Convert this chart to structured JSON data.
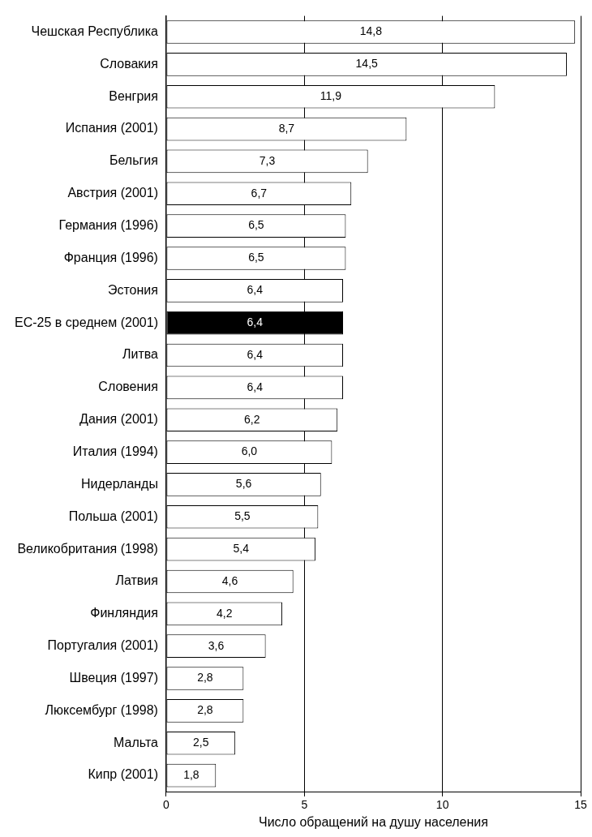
{
  "chart_data": {
    "type": "bar",
    "orientation": "horizontal",
    "categories": [
      "Чешская Республика",
      "Словакия",
      "Венгрия",
      "Испания (2001)",
      "Бельгия",
      "Австрия (2001)",
      "Германия (1996)",
      "Франция (1996)",
      "Эстония",
      "ЕС-25 в среднем (2001)",
      "Литва",
      "Словения",
      "Дания (2001)",
      "Италия (1994)",
      "Нидерланды",
      "Польша (2001)",
      "Великобритания (1998)",
      "Латвия",
      "Финляндия",
      "Португалия (2001)",
      "Швеция (1997)",
      "Люксембург (1998)",
      "Мальта",
      "Кипр (2001)"
    ],
    "values": [
      14.8,
      14.5,
      11.9,
      8.7,
      7.3,
      6.7,
      6.5,
      6.5,
      6.4,
      6.4,
      6.4,
      6.4,
      6.2,
      6.0,
      5.6,
      5.5,
      5.4,
      4.6,
      4.2,
      3.6,
      2.8,
      2.8,
      2.5,
      1.8
    ],
    "value_labels": [
      "14,8",
      "14,5",
      "11,9",
      "8,7",
      "7,3",
      "6,7",
      "6,5",
      "6,5",
      "6,4",
      "6,4",
      "6,4",
      "6,4",
      "6,2",
      "6,0",
      "5,6",
      "5,5",
      "5,4",
      "4,6",
      "4,2",
      "3,6",
      "2,8",
      "2,8",
      "2,5",
      "1,8"
    ],
    "colors": [
      "#ffffff",
      "#ffffff",
      "#ffffff",
      "#ffffff",
      "#ffffff",
      "#ffffff",
      "#ffffff",
      "#ffffff",
      "#ffffff",
      "#000000",
      "#ffffff",
      "#ffffff",
      "#ffffff",
      "#ffffff",
      "#ffffff",
      "#ffffff",
      "#ffffff",
      "#ffffff",
      "#ffffff",
      "#ffffff",
      "#ffffff",
      "#ffffff",
      "#ffffff",
      "#ffffff"
    ],
    "xlabel": "Число обращений на душу населения",
    "xlim": [
      0,
      15
    ],
    "xticks": [
      0,
      5,
      10,
      15
    ],
    "grid": "x",
    "legend": false
  }
}
